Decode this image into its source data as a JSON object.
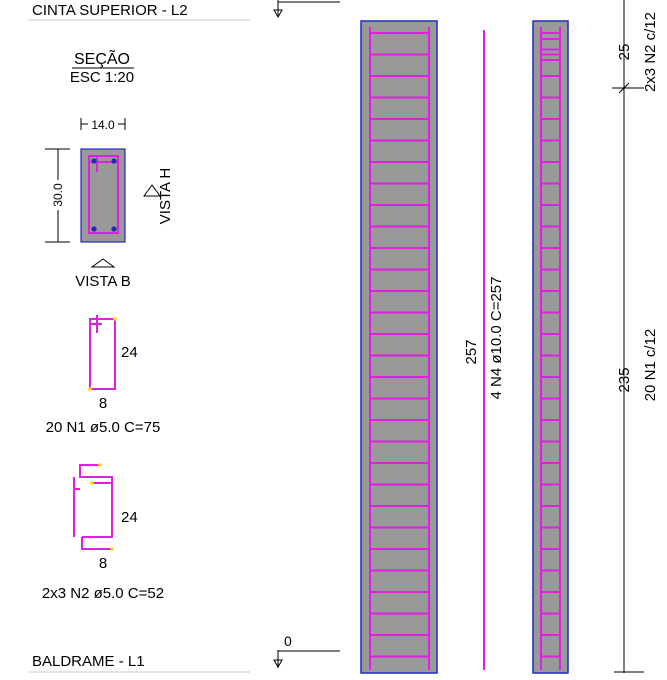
{
  "levels": {
    "top_label": "CINTA SUPERIOR - L2",
    "bottom_label": "BALDRAME - L1",
    "bottom_elev": "0"
  },
  "section": {
    "title": "SEÇÃO",
    "scale": "ESC 1:20",
    "width_dim": "14.0",
    "height_dim": "30.0",
    "view_h": "VISTA H",
    "view_b": "VISTA B"
  },
  "bars": {
    "n1": {
      "dim_height": "24",
      "dim_width": "8",
      "label": "20 N1 ø5.0 C=75"
    },
    "n2": {
      "dim_height": "24",
      "dim_width": "8",
      "label": "2x3 N2 ø5.0 C=52"
    }
  },
  "elevation": {
    "long_bar_length": "257",
    "long_bar_label": "4 N4 ø10.0 C=257",
    "dim_top": "25",
    "dim_top_label": "2x3 N2 c/12",
    "dim_main": "235",
    "dim_main_label": "20 N1 c/12"
  },
  "colors": {
    "rebar": "#e020e0",
    "concrete": "#999999",
    "outline": "#1f2bbf",
    "hook": "#f5d800"
  }
}
